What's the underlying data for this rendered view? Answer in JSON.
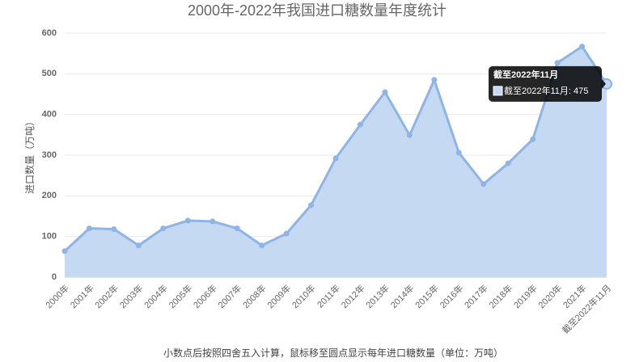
{
  "chart_data": {
    "type": "area",
    "title": "2000年-2022年我国进口糖数量年度统计",
    "y_label": "进口数量（万吨）",
    "footnote": "小数点后按照四舍五入计算，鼠标移至圆点显示每年进口糖数量（单位：万吨）",
    "categories": [
      "2000年",
      "2001年",
      "2002年",
      "2003年",
      "2004年",
      "2005年",
      "2006年",
      "2007年",
      "2008年",
      "2009年",
      "2010年",
      "2011年",
      "2012年",
      "2013年",
      "2014年",
      "2015年",
      "2016年",
      "2017年",
      "2018年",
      "2019年",
      "2020年",
      "2021年",
      "截至2022年11月"
    ],
    "series": [
      {
        "name": "截至2022年11月",
        "color": "#8fb4e6",
        "fill": "#c5d9f3",
        "values": [
          64,
          120,
          118,
          78,
          120,
          139,
          137,
          120,
          78,
          107,
          177,
          292,
          375,
          455,
          349,
          485,
          306,
          229,
          280,
          339,
          527,
          567,
          475
        ]
      }
    ],
    "ylim": [
      0,
      600
    ],
    "yticks": [
      0,
      100,
      200,
      300,
      400,
      500,
      600
    ],
    "grid": true,
    "tooltip": {
      "index": 22,
      "title": "截至2022年11月",
      "label": "截至2022年11月: 475"
    }
  }
}
